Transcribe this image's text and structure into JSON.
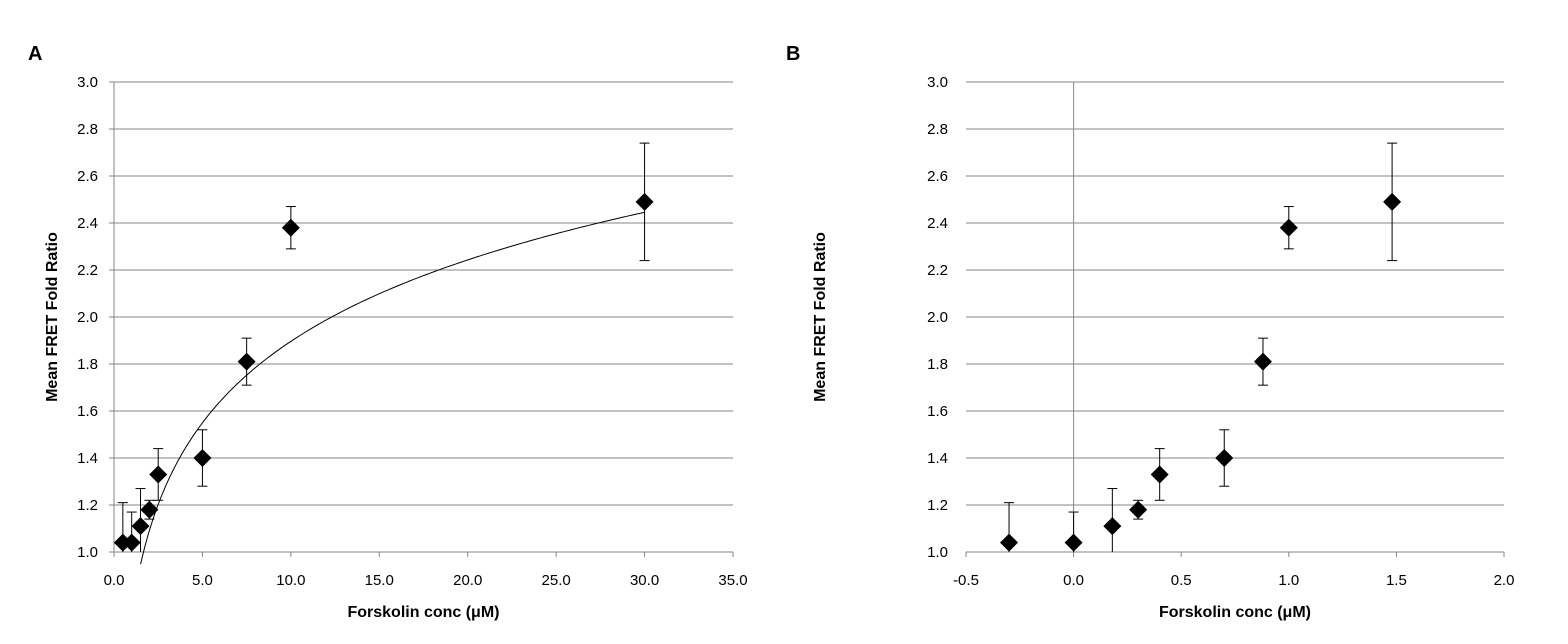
{
  "chart_data": [
    {
      "panel": "A",
      "type": "scatter",
      "xlabel": "Forskolin conc (μM)",
      "ylabel": "Mean FRET Fold Ratio",
      "xlim": [
        0,
        35
      ],
      "ylim": [
        1.0,
        3.0
      ],
      "x_ticks": [
        "0.0",
        "5.0",
        "10.0",
        "15.0",
        "20.0",
        "25.0",
        "30.0",
        "35.0"
      ],
      "y_ticks": [
        "1.0",
        "1.2",
        "1.4",
        "1.6",
        "1.8",
        "2.0",
        "2.2",
        "2.4",
        "2.6",
        "2.8",
        "3.0"
      ],
      "grid": "horizontal",
      "legend": "none",
      "marker": "diamond",
      "color": "#000000",
      "points": [
        {
          "x": 0.5,
          "y": 1.04,
          "err": 0.17
        },
        {
          "x": 1.0,
          "y": 1.04,
          "err": 0.13
        },
        {
          "x": 1.5,
          "y": 1.11,
          "err": 0.16
        },
        {
          "x": 2.0,
          "y": 1.18,
          "err": 0.04
        },
        {
          "x": 2.5,
          "y": 1.33,
          "err": 0.11
        },
        {
          "x": 5.0,
          "y": 1.4,
          "err": 0.12
        },
        {
          "x": 7.5,
          "y": 1.81,
          "err": 0.1
        },
        {
          "x": 10.0,
          "y": 2.38,
          "err": 0.09
        },
        {
          "x": 30.0,
          "y": 2.49,
          "err": 0.25
        }
      ],
      "trendline": {
        "kind": "logarithmic",
        "x_range": [
          1.5,
          30.0
        ],
        "a": 0.5,
        "b": 0.745
      }
    },
    {
      "panel": "B",
      "type": "scatter",
      "xlabel": "Forskolin conc (μM)",
      "ylabel": "Mean FRET Fold Ratio",
      "xlim": [
        -0.5,
        2.0
      ],
      "ylim": [
        1.0,
        3.0
      ],
      "x_ticks": [
        "-0.5",
        "0.0",
        "0.5",
        "1.0",
        "1.5",
        "2.0"
      ],
      "y_ticks": [
        "1.0",
        "1.2",
        "1.4",
        "1.6",
        "1.8",
        "2.0",
        "2.2",
        "2.4",
        "2.6",
        "2.8",
        "3.0"
      ],
      "grid": "horizontal",
      "legend": "none",
      "marker": "diamond",
      "color": "#000000",
      "points": [
        {
          "x": -0.3,
          "y": 1.04,
          "err": 0.17
        },
        {
          "x": 0.0,
          "y": 1.04,
          "err": 0.13
        },
        {
          "x": 0.18,
          "y": 1.11,
          "err": 0.16
        },
        {
          "x": 0.3,
          "y": 1.18,
          "err": 0.04
        },
        {
          "x": 0.4,
          "y": 1.33,
          "err": 0.11
        },
        {
          "x": 0.7,
          "y": 1.4,
          "err": 0.12
        },
        {
          "x": 0.88,
          "y": 1.81,
          "err": 0.1
        },
        {
          "x": 1.0,
          "y": 2.38,
          "err": 0.09
        },
        {
          "x": 1.48,
          "y": 2.49,
          "err": 0.25
        }
      ]
    }
  ]
}
